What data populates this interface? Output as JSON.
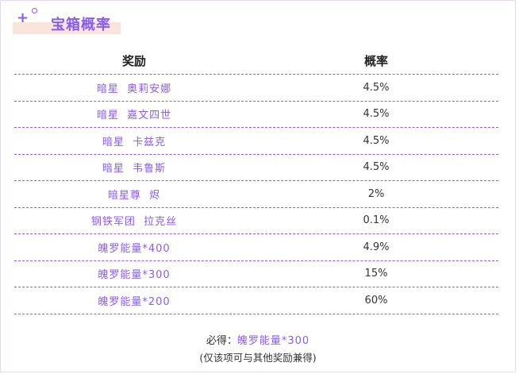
{
  "title": "宝箱概率",
  "table": {
    "headers": {
      "reward": "奖励",
      "probability": "概率"
    },
    "rows": [
      {
        "reward": "暗星  奥莉安娜",
        "probability": "4.5%"
      },
      {
        "reward": "暗星  嘉文四世",
        "probability": "4.5%"
      },
      {
        "reward": "暗星  卡兹克",
        "probability": "4.5%"
      },
      {
        "reward": "暗星  韦鲁斯",
        "probability": "4.5%"
      },
      {
        "reward": "暗星尊  烬",
        "probability": "2%"
      },
      {
        "reward": "钢铁军团  拉克丝",
        "probability": "0.1%"
      },
      {
        "reward": "魄罗能量*400",
        "probability": "4.9%"
      },
      {
        "reward": "魄罗能量*300",
        "probability": "15%"
      },
      {
        "reward": "魄罗能量*200",
        "probability": "60%"
      }
    ]
  },
  "footer": {
    "guaranteed_label": "必得：",
    "guaranteed_value": "魄罗能量*300",
    "note": "(仅该项可与其他奖励兼得)"
  },
  "colors": {
    "accent": "#8a5cf0",
    "header_band": "#f8e6dc",
    "divider": "#8a5cf0"
  }
}
